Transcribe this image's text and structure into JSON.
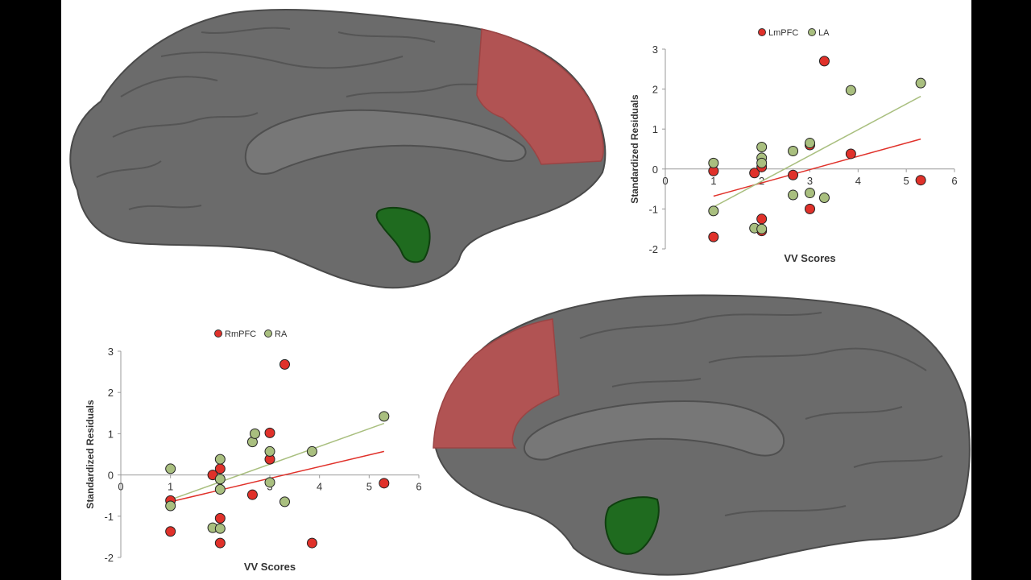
{
  "colors": {
    "background": "#000000",
    "panel": "#ffffff",
    "brain_gray": "#6b6b6b",
    "brain_outline": "#4a4a4a",
    "pfc_red": "#b15353",
    "amygdala_green": "#1f6b1f",
    "axis": "#999999",
    "text": "#333333"
  },
  "regions": {
    "left_hemisphere": {
      "pfc": "LmPFC",
      "amygdala": "LA"
    },
    "right_hemisphere": {
      "pfc": "RmPFC",
      "amygdala": "RA"
    }
  },
  "chart_data": [
    {
      "type": "scatter",
      "title": "",
      "xlabel": "VV Scores",
      "ylabel": "Standardized Residuals",
      "xlim": [
        0,
        6
      ],
      "ylim": [
        -2,
        3
      ],
      "xticks": [
        0,
        1,
        2,
        3,
        4,
        5,
        6
      ],
      "yticks": [
        -2,
        -1,
        0,
        1,
        2,
        3
      ],
      "grid": false,
      "legend": "top-center",
      "series": [
        {
          "name": "LmPFC",
          "color": "#e0312a",
          "points": [
            [
              1,
              -0.05
            ],
            [
              1,
              -1.7
            ],
            [
              1.85,
              -0.1
            ],
            [
              2,
              0.05
            ],
            [
              2,
              -1.25
            ],
            [
              2,
              -1.55
            ],
            [
              2.65,
              -0.15
            ],
            [
              3,
              0.6
            ],
            [
              3,
              -1.0
            ],
            [
              3.3,
              2.7
            ],
            [
              3.85,
              0.38
            ],
            [
              5.3,
              -0.28
            ]
          ],
          "trend": [
            [
              1,
              -0.68
            ],
            [
              5.3,
              0.75
            ]
          ]
        },
        {
          "name": "LA",
          "color": "#a9bf7f",
          "points": [
            [
              1,
              0.15
            ],
            [
              1,
              -1.05
            ],
            [
              1.85,
              -1.48
            ],
            [
              2,
              0.55
            ],
            [
              2,
              0.28
            ],
            [
              2,
              0.15
            ],
            [
              2,
              -1.5
            ],
            [
              2.65,
              0.45
            ],
            [
              2.65,
              -0.65
            ],
            [
              3,
              0.65
            ],
            [
              3,
              -0.6
            ],
            [
              3.3,
              -0.72
            ],
            [
              3.85,
              1.97
            ],
            [
              5.3,
              2.15
            ]
          ],
          "trend": [
            [
              1,
              -0.95
            ],
            [
              5.3,
              1.82
            ]
          ]
        }
      ]
    },
    {
      "type": "scatter",
      "title": "",
      "xlabel": "VV Scores",
      "ylabel": "Standardized Residuals",
      "xlim": [
        0,
        6
      ],
      "ylim": [
        -2,
        3
      ],
      "xticks": [
        0,
        1,
        2,
        3,
        4,
        5,
        6
      ],
      "yticks": [
        -2,
        -1,
        0,
        1,
        2,
        3
      ],
      "grid": false,
      "legend": "top-center",
      "series": [
        {
          "name": "RmPFC",
          "color": "#e0312a",
          "points": [
            [
              1,
              -0.62
            ],
            [
              1,
              -1.37
            ],
            [
              1.85,
              0.0
            ],
            [
              2,
              0.15
            ],
            [
              2,
              -1.05
            ],
            [
              2,
              -1.65
            ],
            [
              2.65,
              -0.48
            ],
            [
              3,
              1.02
            ],
            [
              3,
              0.38
            ],
            [
              3.3,
              2.68
            ],
            [
              3.85,
              -1.65
            ],
            [
              5.3,
              -0.2
            ]
          ],
          "trend": [
            [
              1,
              -0.65
            ],
            [
              5.3,
              0.57
            ]
          ]
        },
        {
          "name": "RA",
          "color": "#a9bf7f",
          "points": [
            [
              1,
              0.15
            ],
            [
              1,
              -0.75
            ],
            [
              1.85,
              -1.28
            ],
            [
              2,
              0.38
            ],
            [
              2,
              -0.1
            ],
            [
              2,
              -0.35
            ],
            [
              2,
              -1.3
            ],
            [
              2.65,
              0.8
            ],
            [
              2.7,
              1.0
            ],
            [
              3,
              0.57
            ],
            [
              3,
              -0.18
            ],
            [
              3.3,
              -0.65
            ],
            [
              3.85,
              0.57
            ],
            [
              5.3,
              1.42
            ]
          ],
          "trend": [
            [
              1,
              -0.6
            ],
            [
              5.3,
              1.25
            ]
          ]
        }
      ]
    }
  ]
}
